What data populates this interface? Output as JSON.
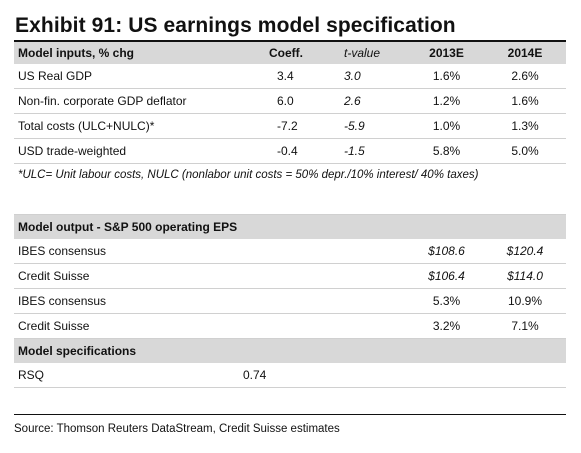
{
  "title": "Exhibit 91: US earnings model specification",
  "header": [
    "Model inputs, % chg",
    "Coeff.",
    "t-value",
    "2013E",
    "2014E"
  ],
  "inputs": [
    {
      "label": "US Real GDP",
      "coeff": "3.4",
      "tval": "3.0",
      "y2013": "1.6%",
      "y2014": "2.6%"
    },
    {
      "label": "Non-fin. corporate GDP deflator",
      "coeff": "6.0",
      "tval": "2.6",
      "y2013": "1.2%",
      "y2014": "1.6%"
    },
    {
      "label": "Total costs (ULC+NULC)*",
      "coeff": "-7.2",
      "tval": "-5.9",
      "y2013": "1.0%",
      "y2014": "1.3%"
    },
    {
      "label": "USD trade-weighted",
      "coeff": "-0.4",
      "tval": "-1.5",
      "y2013": "5.8%",
      "y2014": "5.0%"
    }
  ],
  "footnote": "*ULC= Unit labour costs, NULC (nonlabor unit costs = 50% depr./10% interest/ 40% taxes)",
  "output_header": "Model output - S&P 500 operating EPS",
  "outputs": [
    {
      "label": "IBES consensus",
      "y2013": "$108.6",
      "y2014": "$120.4"
    },
    {
      "label": "Credit Suisse",
      "y2013": "$106.4",
      "y2014": "$114.0"
    },
    {
      "label": "IBES consensus",
      "y2013": "5.3%",
      "y2014": "10.9%"
    },
    {
      "label": "Credit Suisse",
      "y2013": "3.2%",
      "y2014": "7.1%"
    }
  ],
  "spec_header": "Model specifications",
  "specs": [
    {
      "label": "RSQ",
      "value": "0.74"
    }
  ],
  "source": "Source: Thomson Reuters DataStream, Credit Suisse estimates"
}
